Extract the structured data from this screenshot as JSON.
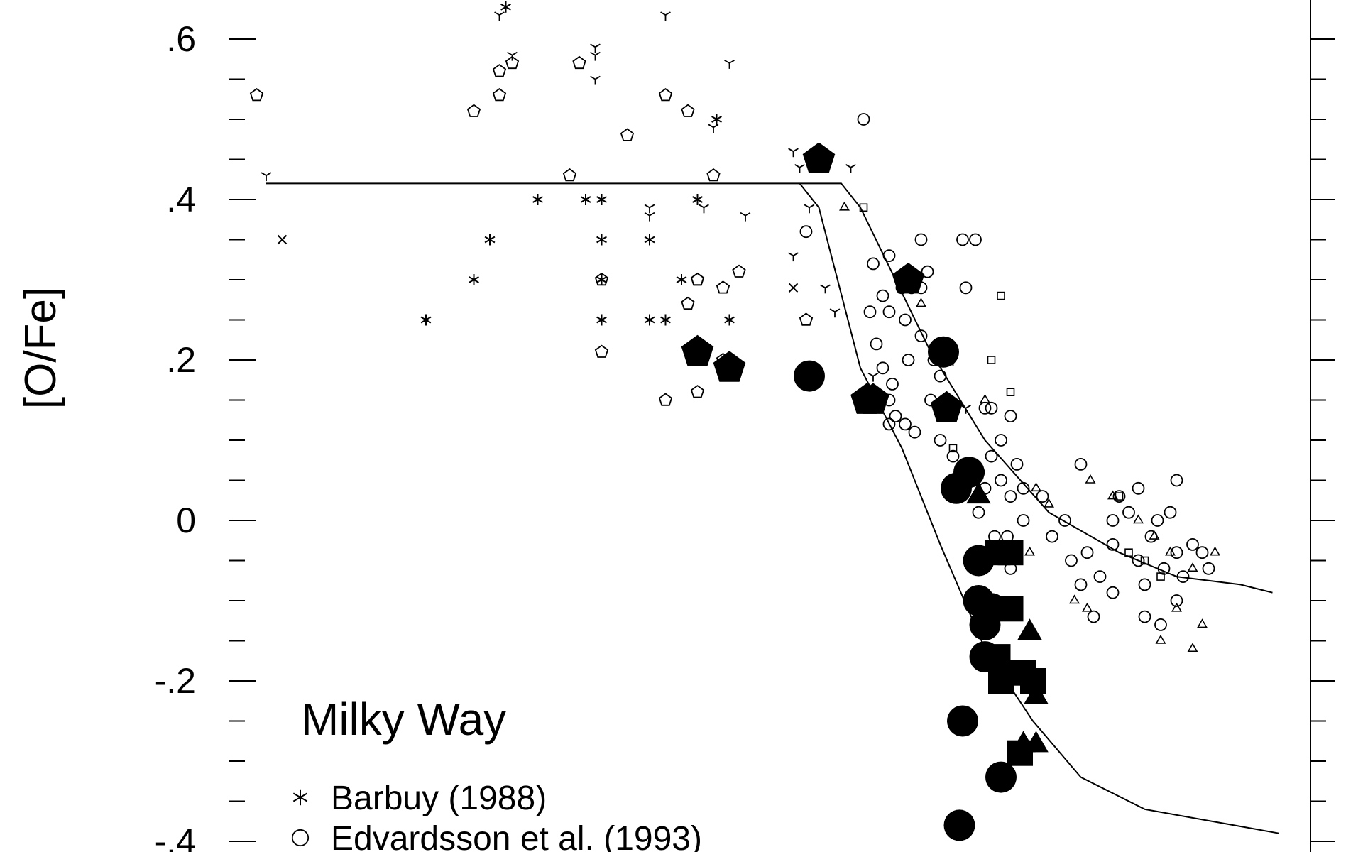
{
  "chart_data": {
    "type": "scatter",
    "title": "",
    "xlabel": "",
    "ylabel": "[O/Fe]",
    "ylim": [
      -0.41,
      0.65
    ],
    "xlim": [
      -2.95,
      0.65
    ],
    "y_ticks": [
      {
        "value": 0.6,
        "label": ".6"
      },
      {
        "value": 0.4,
        "label": ".4"
      },
      {
        "value": 0.2,
        "label": ".2"
      },
      {
        "value": 0.0,
        "label": "0"
      },
      {
        "value": -0.2,
        "label": "-.2"
      },
      {
        "value": -0.4,
        "label": "-.4"
      }
    ],
    "annotation": "Milky Way",
    "grid": false,
    "legend_position": "bottom-left",
    "legend": [
      {
        "marker": "asterisk",
        "label": "Barbuy (1988)"
      },
      {
        "marker": "circle-open",
        "label": "Edvardsson et al. (1993)"
      }
    ],
    "series": [
      {
        "name": "Barbuy (1988)",
        "marker": "asterisk",
        "points": [
          [
            -2.0,
            0.4
          ],
          [
            -1.85,
            0.4
          ],
          [
            -1.8,
            0.4
          ],
          [
            -2.15,
            0.35
          ],
          [
            -1.8,
            0.35
          ],
          [
            -1.65,
            0.35
          ],
          [
            -2.2,
            0.3
          ],
          [
            -1.8,
            0.3
          ],
          [
            -1.55,
            0.3
          ],
          [
            -2.35,
            0.25
          ],
          [
            -1.8,
            0.25
          ],
          [
            -1.65,
            0.25
          ],
          [
            -1.6,
            0.25
          ],
          [
            -1.4,
            0.25
          ],
          [
            -1.5,
            0.4
          ],
          [
            -1.44,
            0.5
          ],
          [
            -2.1,
            0.64
          ]
        ]
      },
      {
        "name": "Edvardsson et al. (1993)",
        "marker": "circle-open",
        "points": [
          [
            -0.98,
            0.5
          ],
          [
            -1.16,
            0.36
          ],
          [
            -0.95,
            0.32
          ],
          [
            -0.9,
            0.33
          ],
          [
            -0.8,
            0.35
          ],
          [
            -0.63,
            0.35
          ],
          [
            -0.86,
            0.29
          ],
          [
            -0.83,
            0.29
          ],
          [
            -0.8,
            0.29
          ],
          [
            -0.92,
            0.28
          ],
          [
            -0.9,
            0.26
          ],
          [
            -0.85,
            0.25
          ],
          [
            -0.78,
            0.31
          ],
          [
            -0.66,
            0.29
          ],
          [
            -0.96,
            0.26
          ],
          [
            -0.94,
            0.22
          ],
          [
            -0.92,
            0.19
          ],
          [
            -0.89,
            0.17
          ],
          [
            -0.84,
            0.2
          ],
          [
            -0.8,
            0.23
          ],
          [
            -0.76,
            0.2
          ],
          [
            -0.74,
            0.18
          ],
          [
            -0.77,
            0.15
          ],
          [
            -0.73,
            0.14
          ],
          [
            -0.74,
            0.1
          ],
          [
            -0.88,
            0.13
          ],
          [
            -0.85,
            0.12
          ],
          [
            -0.82,
            0.11
          ],
          [
            -0.9,
            0.15
          ],
          [
            -0.7,
            0.08
          ],
          [
            -0.66,
            0.06
          ],
          [
            -0.62,
            0.06
          ],
          [
            -0.6,
            0.04
          ],
          [
            -0.55,
            0.05
          ],
          [
            -0.52,
            0.03
          ],
          [
            -0.58,
            0.08
          ],
          [
            -0.55,
            0.1
          ],
          [
            -0.5,
            0.07
          ],
          [
            -0.48,
            0.04
          ],
          [
            -0.6,
            0.14
          ],
          [
            -0.52,
            0.13
          ],
          [
            -0.62,
            0.01
          ],
          [
            -0.57,
            -0.02
          ],
          [
            -0.53,
            -0.02
          ],
          [
            -0.5,
            -0.04
          ],
          [
            -0.48,
            0.0
          ],
          [
            -0.42,
            0.03
          ],
          [
            -0.39,
            -0.02
          ],
          [
            -0.35,
            0.0
          ],
          [
            -0.33,
            -0.05
          ],
          [
            -0.3,
            -0.08
          ],
          [
            -0.28,
            -0.04
          ],
          [
            -0.24,
            -0.07
          ],
          [
            -0.2,
            -0.03
          ],
          [
            -0.18,
            0.03
          ],
          [
            -0.15,
            0.01
          ],
          [
            -0.12,
            -0.05
          ],
          [
            -0.1,
            -0.08
          ],
          [
            -0.08,
            -0.02
          ],
          [
            -0.06,
            0.0
          ],
          [
            -0.04,
            -0.06
          ],
          [
            -0.02,
            0.01
          ],
          [
            0.0,
            -0.04
          ],
          [
            0.02,
            -0.07
          ],
          [
            0.05,
            -0.03
          ],
          [
            0.08,
            -0.04
          ],
          [
            -0.1,
            -0.12
          ],
          [
            0.0,
            -0.1
          ],
          [
            -0.05,
            -0.13
          ],
          [
            -0.26,
            -0.12
          ],
          [
            -0.3,
            0.07
          ],
          [
            -0.2,
            0.0
          ],
          [
            -0.12,
            0.04
          ],
          [
            0.0,
            0.05
          ],
          [
            0.1,
            -0.06
          ],
          [
            -0.52,
            -0.06
          ],
          [
            -0.2,
            -0.09
          ],
          [
            -0.58,
            0.14
          ],
          [
            -0.67,
            0.35
          ],
          [
            -0.9,
            0.12
          ]
        ]
      },
      {
        "name": "",
        "marker": "pentagon-open",
        "points": [
          [
            -2.88,
            0.53
          ],
          [
            -2.2,
            0.51
          ],
          [
            -2.12,
            0.56
          ],
          [
            -2.12,
            0.53
          ],
          [
            -2.08,
            0.57
          ],
          [
            -1.87,
            0.57
          ],
          [
            -1.6,
            0.53
          ],
          [
            -1.53,
            0.51
          ],
          [
            -1.72,
            0.48
          ],
          [
            -1.9,
            0.43
          ],
          [
            -1.8,
            0.3
          ],
          [
            -1.5,
            0.3
          ],
          [
            -1.42,
            0.29
          ],
          [
            -1.37,
            0.31
          ],
          [
            -1.16,
            0.25
          ],
          [
            -1.8,
            0.21
          ],
          [
            -1.42,
            0.2
          ],
          [
            -1.6,
            0.15
          ],
          [
            -1.5,
            0.16
          ],
          [
            -1.53,
            0.27
          ],
          [
            -1.5,
            0.3
          ],
          [
            -1.45,
            0.43
          ]
        ]
      },
      {
        "name": "",
        "marker": "tripod",
        "points": [
          [
            -2.85,
            0.43
          ],
          [
            -2.12,
            0.63
          ],
          [
            -2.08,
            0.58
          ],
          [
            -1.82,
            0.59
          ],
          [
            -1.82,
            0.55
          ],
          [
            -1.6,
            0.63
          ],
          [
            -1.4,
            0.57
          ],
          [
            -1.45,
            0.49
          ],
          [
            -1.65,
            0.39
          ],
          [
            -1.65,
            0.38
          ],
          [
            -1.48,
            0.39
          ],
          [
            -1.35,
            0.38
          ],
          [
            -1.2,
            0.46
          ],
          [
            -1.18,
            0.44
          ],
          [
            -1.02,
            0.44
          ],
          [
            -1.15,
            0.39
          ],
          [
            -1.2,
            0.33
          ],
          [
            -1.1,
            0.29
          ],
          [
            -1.07,
            0.26
          ],
          [
            -0.95,
            0.18
          ],
          [
            -0.66,
            0.14
          ],
          [
            -0.7,
            0.2
          ],
          [
            -0.85,
            0.31
          ],
          [
            -1.82,
            0.58
          ]
        ]
      },
      {
        "name": "",
        "marker": "triangle-open",
        "points": [
          [
            -1.04,
            0.39
          ],
          [
            -0.8,
            0.27
          ],
          [
            -0.74,
            0.2
          ],
          [
            -0.6,
            0.15
          ],
          [
            -0.44,
            0.04
          ],
          [
            -0.4,
            0.02
          ],
          [
            -0.27,
            0.05
          ],
          [
            -0.2,
            0.03
          ],
          [
            -0.12,
            0.0
          ],
          [
            -0.07,
            -0.02
          ],
          [
            -0.02,
            -0.04
          ],
          [
            0.05,
            -0.06
          ],
          [
            0.12,
            -0.04
          ],
          [
            0.0,
            -0.11
          ],
          [
            0.08,
            -0.13
          ],
          [
            -0.32,
            -0.1
          ],
          [
            -0.28,
            -0.11
          ],
          [
            -0.05,
            -0.15
          ],
          [
            0.05,
            -0.16
          ],
          [
            -0.46,
            -0.04
          ]
        ]
      },
      {
        "name": "",
        "marker": "square-open",
        "points": [
          [
            -0.98,
            0.39
          ],
          [
            -0.55,
            0.28
          ],
          [
            -0.58,
            0.2
          ],
          [
            -0.52,
            0.16
          ],
          [
            -0.7,
            0.09
          ],
          [
            -0.18,
            0.03
          ],
          [
            -0.1,
            -0.05
          ],
          [
            -0.15,
            -0.04
          ],
          [
            -0.05,
            -0.07
          ]
        ]
      },
      {
        "name": "",
        "marker": "cross",
        "points": [
          [
            -2.8,
            0.35
          ],
          [
            -1.2,
            0.29
          ]
        ]
      },
      {
        "name": "",
        "marker": "pentagon-filled",
        "points": [
          [
            -1.5,
            0.21
          ],
          [
            -1.4,
            0.19
          ],
          [
            -1.12,
            0.45
          ],
          [
            -0.97,
            0.15
          ],
          [
            -0.95,
            0.15
          ],
          [
            -0.84,
            0.3
          ],
          [
            -0.72,
            0.14
          ]
        ]
      },
      {
        "name": "",
        "marker": "circle-filled",
        "points": [
          [
            -1.15,
            0.18
          ],
          [
            -0.73,
            0.21
          ],
          [
            -0.69,
            0.04
          ],
          [
            -0.65,
            0.06
          ],
          [
            -0.62,
            -0.05
          ],
          [
            -0.62,
            -0.1
          ],
          [
            -0.58,
            -0.11
          ],
          [
            -0.6,
            -0.13
          ],
          [
            -0.6,
            -0.17
          ],
          [
            -0.67,
            -0.25
          ],
          [
            -0.55,
            -0.32
          ],
          [
            -0.68,
            -0.38
          ]
        ]
      },
      {
        "name": "",
        "marker": "square-filled",
        "points": [
          [
            -0.56,
            -0.04
          ],
          [
            -0.52,
            -0.04
          ],
          [
            -0.52,
            -0.11
          ],
          [
            -0.56,
            -0.17
          ],
          [
            -0.55,
            -0.2
          ],
          [
            -0.48,
            -0.19
          ],
          [
            -0.45,
            -0.2
          ],
          [
            -0.49,
            -0.29
          ]
        ]
      },
      {
        "name": "",
        "marker": "triangle-filled",
        "points": [
          [
            -0.62,
            0.03
          ],
          [
            -0.46,
            -0.14
          ],
          [
            -0.44,
            -0.22
          ],
          [
            -0.44,
            -0.28
          ],
          [
            -0.48,
            -0.28
          ]
        ]
      }
    ],
    "lines": [
      {
        "points": [
          [
            -2.85,
            0.42
          ],
          [
            -1.05,
            0.42
          ],
          [
            -0.99,
            0.39
          ],
          [
            -0.77,
            0.21
          ],
          [
            -0.6,
            0.1
          ],
          [
            -0.4,
            0.01
          ],
          [
            -0.18,
            -0.04
          ],
          [
            0.0,
            -0.07
          ],
          [
            0.2,
            -0.08
          ],
          [
            0.3,
            -0.09
          ]
        ]
      },
      {
        "points": [
          [
            -1.18,
            0.42
          ],
          [
            -1.12,
            0.39
          ],
          [
            -0.99,
            0.19
          ],
          [
            -0.86,
            0.09
          ],
          [
            -0.74,
            -0.03
          ],
          [
            -0.6,
            -0.16
          ],
          [
            -0.45,
            -0.25
          ],
          [
            -0.3,
            -0.32
          ],
          [
            -0.1,
            -0.36
          ],
          [
            0.18,
            -0.38
          ],
          [
            0.32,
            -0.39
          ]
        ]
      }
    ]
  }
}
